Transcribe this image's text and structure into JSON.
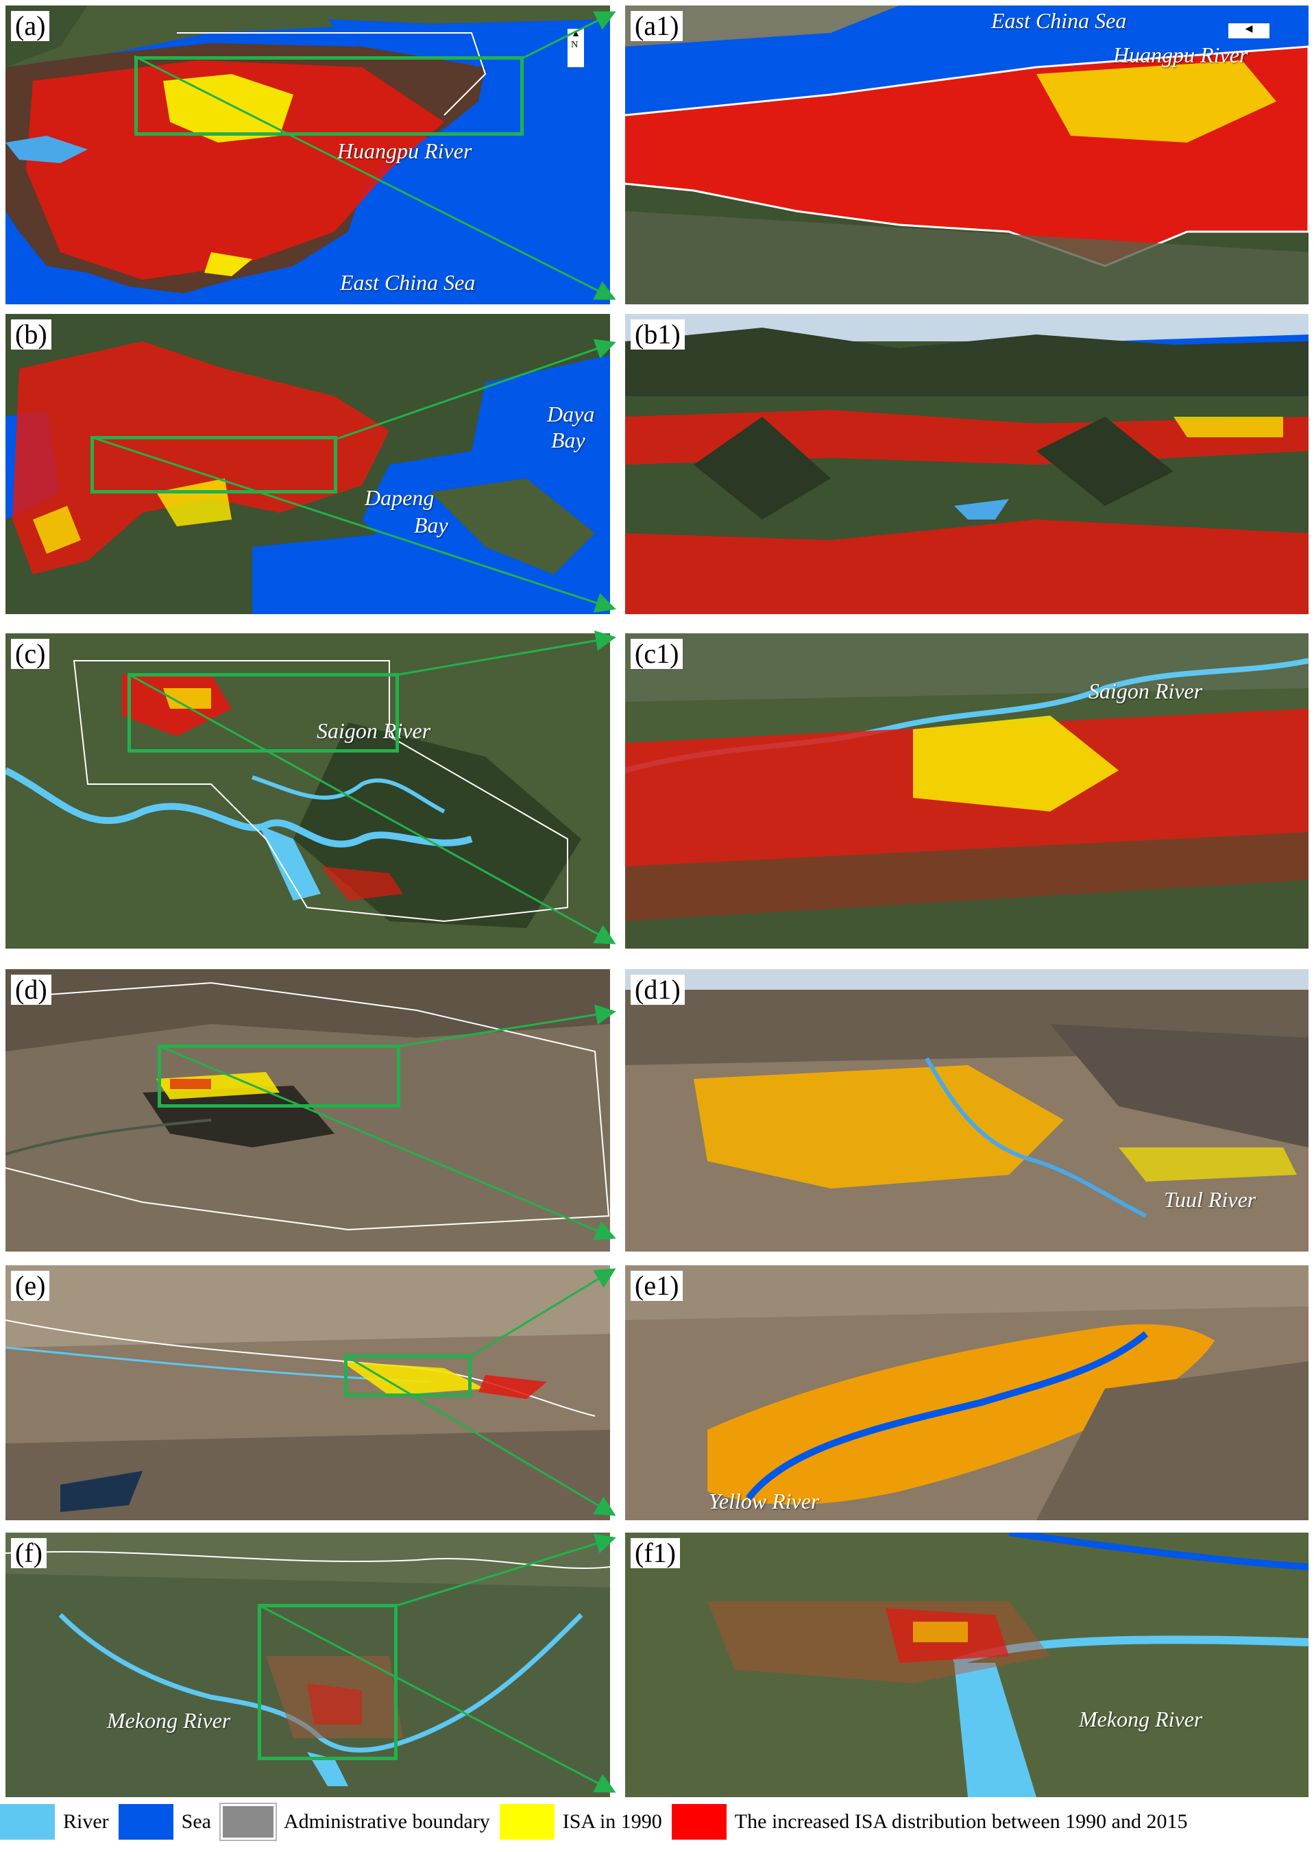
{
  "panels": [
    {
      "label": "(a)",
      "annotations": [
        "Huangpu River",
        "East China Sea"
      ]
    },
    {
      "label": "(a1)",
      "annotations": [
        "East China Sea",
        "Huangpu River"
      ]
    },
    {
      "label": "(b)",
      "annotations": [
        "Daya",
        "Bay",
        "Dapeng",
        "Bay"
      ]
    },
    {
      "label": "(b1)",
      "annotations": []
    },
    {
      "label": "(c)",
      "annotations": [
        "Saigon River"
      ]
    },
    {
      "label": "(c1)",
      "annotations": [
        "Saigon River"
      ]
    },
    {
      "label": "(d)",
      "annotations": []
    },
    {
      "label": "(d1)",
      "annotations": [
        "Tuul  River"
      ]
    },
    {
      "label": "(e)",
      "annotations": []
    },
    {
      "label": "(e1)",
      "annotations": [
        "Yellow River"
      ]
    },
    {
      "label": "(f)",
      "annotations": [
        "Mekong River"
      ]
    },
    {
      "label": "(f1)",
      "annotations": [
        "Mekong River"
      ]
    }
  ],
  "legend": [
    {
      "label": "River",
      "color": "#5ec8f2"
    },
    {
      "label": "Sea",
      "color": "#0057e8"
    },
    {
      "label": "Administrative boundary",
      "color": "#b4b4b4"
    },
    {
      "label": "ISA in 1990",
      "color": "#ffff00"
    },
    {
      "label": "The increased ISA distribution between 1990 and 2015",
      "color": "#ff0000"
    }
  ],
  "colors": {
    "zoom_box": "#22b14c",
    "terrain_green": "#3d5230",
    "terrain_arid": "#7c6e5c"
  }
}
